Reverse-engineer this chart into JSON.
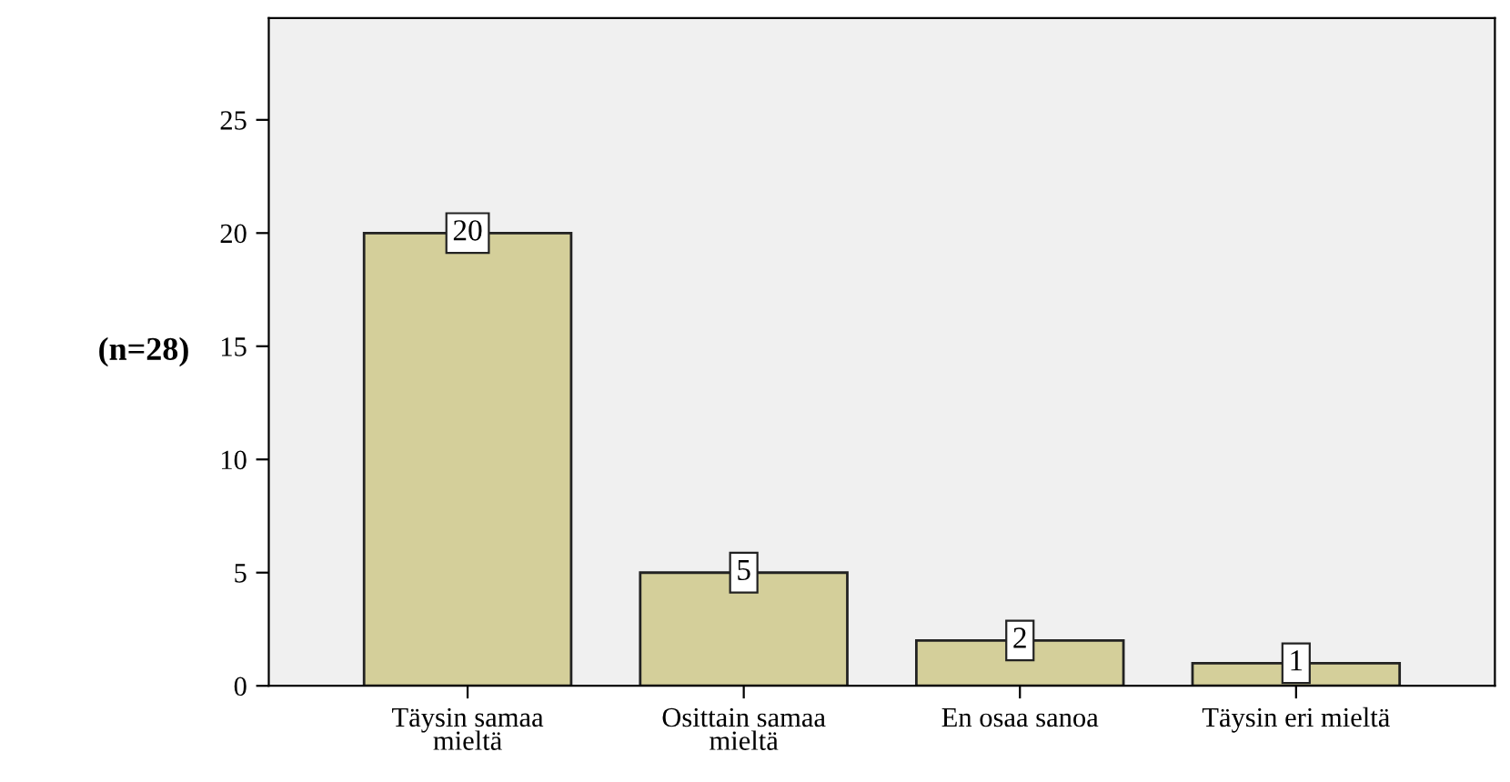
{
  "chart_data": {
    "type": "bar",
    "ylabel": "(n=28)",
    "categories": [
      "Täysin samaa\nmieltä",
      "Osittain samaa\nmieltä",
      "En osaa sanoa",
      "Täysin eri mieltä"
    ],
    "values": [
      20,
      5,
      2,
      1
    ],
    "color": "#d4cf9a",
    "ylim": [
      0,
      29.5
    ],
    "yticks": [
      0,
      5,
      10,
      15,
      20,
      25
    ],
    "data_labels": true,
    "grid": false,
    "legend": false
  }
}
